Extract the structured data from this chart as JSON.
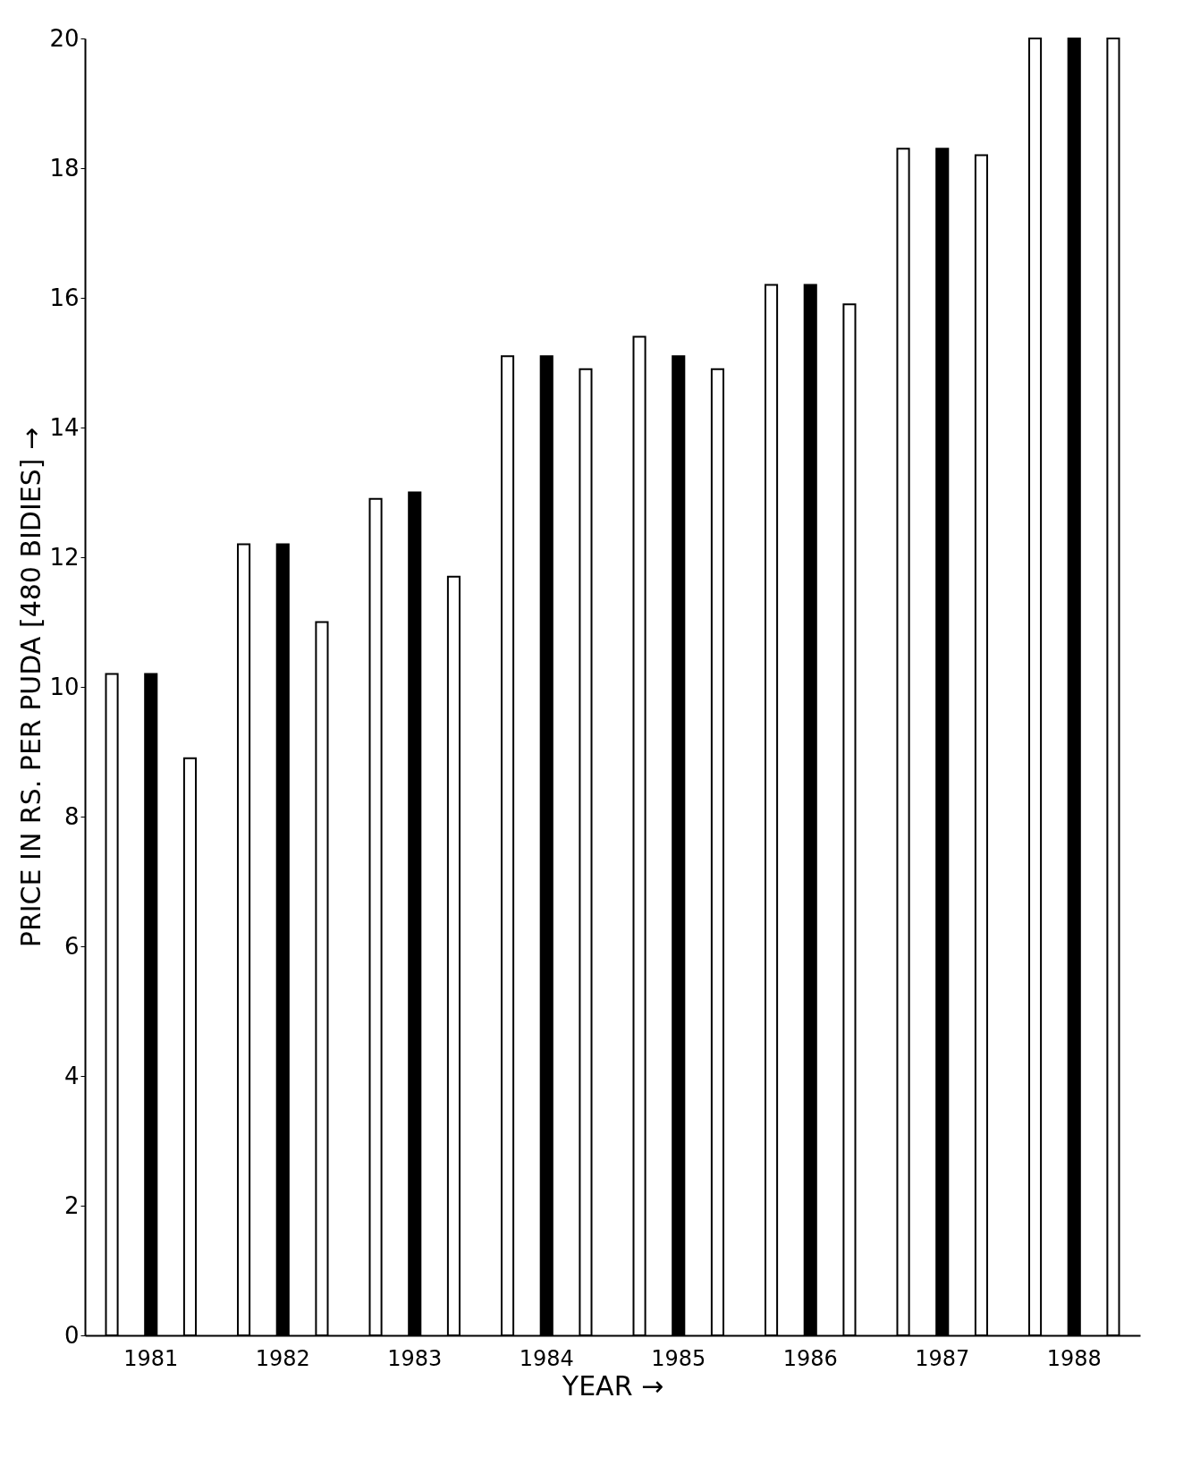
{
  "chart_data": {
    "type": "bar",
    "xlabel": "YEAR →",
    "ylabel": "PRICE IN RS. PER PUDA [480 BIDIES] →",
    "categories": [
      "1981",
      "1982",
      "1983",
      "1984",
      "1985",
      "1986",
      "1987",
      "1988"
    ],
    "series": [
      {
        "color": "#ffffff",
        "values": [
          10.2,
          12.2,
          12.9,
          15.1,
          15.4,
          16.2,
          18.3,
          20
        ]
      },
      {
        "color": "#000000",
        "values": [
          10.2,
          12.2,
          13.0,
          15.1,
          15.1,
          16.2,
          18.3,
          20
        ]
      },
      {
        "color": "#ffffff",
        "values": [
          8.9,
          11.0,
          11.7,
          14.9,
          14.9,
          15.9,
          18.2,
          20
        ]
      }
    ],
    "ylim": [
      0,
      20
    ],
    "yticks": [
      0,
      2,
      4,
      6,
      8,
      10,
      12,
      14,
      16,
      18,
      20
    ],
    "grid": false,
    "legend": false
  }
}
